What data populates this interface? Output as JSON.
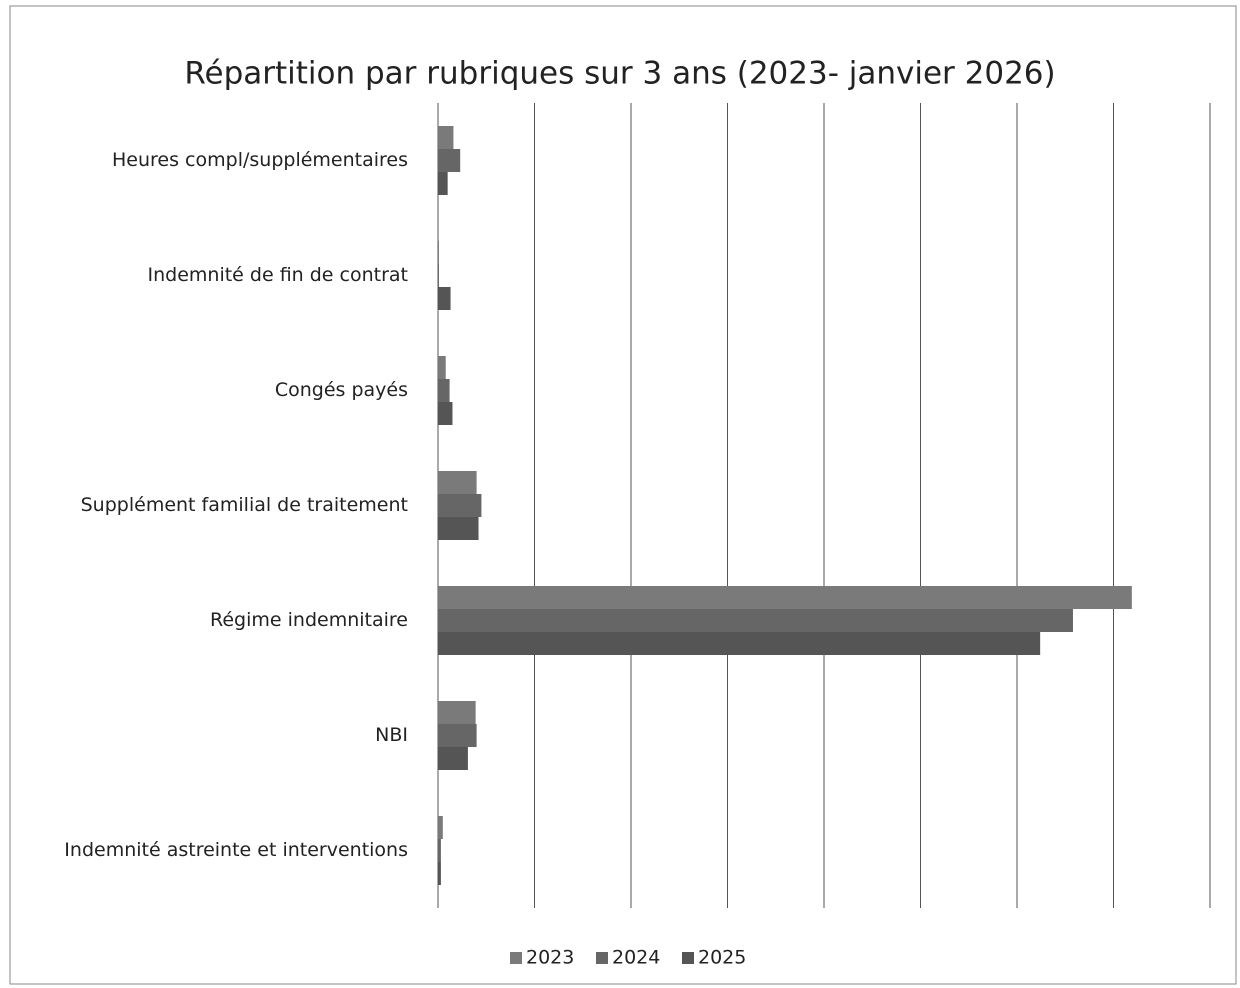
{
  "chart_data": {
    "type": "hbar",
    "title": "Répartition par rubriques sur 3 ans (2023-  janvier 2026)",
    "categories": [
      "Heures compl/supplémentaires",
      "Indemnité de fin de contrat",
      "Congés payés",
      "Supplément familial de traitement",
      "Régime indemnitaire",
      "NBI",
      "Indemnité astreinte et interventions"
    ],
    "series": [
      {
        "name": "2023",
        "color": "#7a7a7a",
        "values": [
          0.16,
          0.01,
          0.08,
          0.4,
          7.19,
          0.39,
          0.05
        ]
      },
      {
        "name": "2024",
        "color": "#666666",
        "values": [
          0.23,
          0.01,
          0.12,
          0.45,
          6.58,
          0.4,
          0.03
        ]
      },
      {
        "name": "2025",
        "color": "#555555",
        "values": [
          0.1,
          0.13,
          0.15,
          0.42,
          6.24,
          0.31,
          0.03
        ]
      }
    ],
    "xlim": [
      0,
      8
    ],
    "xticks": [
      0,
      1,
      2,
      3,
      4,
      5,
      6,
      7,
      8
    ],
    "grid": true,
    "legend": "bottom"
  }
}
